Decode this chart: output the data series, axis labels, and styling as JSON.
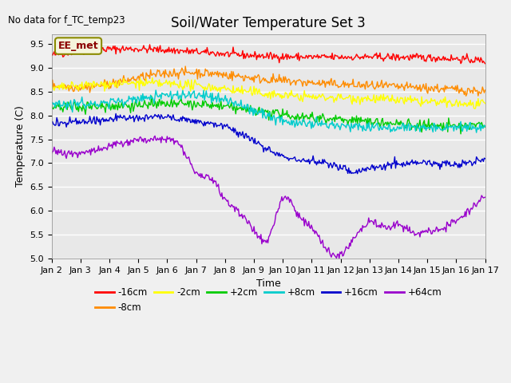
{
  "title": "Soil/Water Temperature Set 3",
  "xlabel": "Time",
  "ylabel": "Temperature (C)",
  "annotation": "No data for f_TC_temp23",
  "legend_label": "EE_met",
  "ylim": [
    5.0,
    9.7
  ],
  "xlim": [
    0,
    15
  ],
  "xtick_labels": [
    "Jan 2",
    "Jan 3",
    "Jan 4",
    "Jan 5",
    "Jan 6",
    "Jan 7",
    "Jan 8",
    "Jan 9",
    "Jan 10",
    "Jan 11",
    "Jan 12",
    "Jan 13",
    "Jan 14",
    "Jan 15",
    "Jan 16",
    "Jan 17"
  ],
  "ytick_vals": [
    5.0,
    5.5,
    6.0,
    6.5,
    7.0,
    7.5,
    8.0,
    8.5,
    9.0,
    9.5
  ],
  "series": [
    {
      "label": "-16cm",
      "color": "#ff0000",
      "keypoints": [
        [
          0,
          9.26
        ],
        [
          3.5,
          9.38
        ],
        [
          7,
          9.25
        ],
        [
          11,
          9.22
        ],
        [
          15,
          9.14
        ]
      ],
      "noise": 0.04
    },
    {
      "label": "-8cm",
      "color": "#ff8c00",
      "keypoints": [
        [
          0,
          8.65
        ],
        [
          2.5,
          8.72
        ],
        [
          4,
          8.88
        ],
        [
          7,
          8.78
        ],
        [
          11,
          8.62
        ],
        [
          15,
          8.5
        ]
      ],
      "noise": 0.05
    },
    {
      "label": "-2cm",
      "color": "#ffff00",
      "keypoints": [
        [
          0,
          8.55
        ],
        [
          3,
          8.67
        ],
        [
          5,
          8.62
        ],
        [
          8,
          8.42
        ],
        [
          11,
          8.35
        ],
        [
          13,
          8.28
        ],
        [
          15,
          8.22
        ]
      ],
      "noise": 0.05
    },
    {
      "label": "+2cm",
      "color": "#00cc00",
      "keypoints": [
        [
          0,
          8.18
        ],
        [
          3,
          8.22
        ],
        [
          6,
          8.18
        ],
        [
          7.5,
          8.05
        ],
        [
          10,
          7.92
        ],
        [
          12,
          7.82
        ],
        [
          15,
          7.8
        ]
      ],
      "noise": 0.055
    },
    {
      "label": "+8cm",
      "color": "#00cccc",
      "keypoints": [
        [
          0,
          8.28
        ],
        [
          3,
          8.35
        ],
        [
          6,
          8.32
        ],
        [
          7,
          8.1
        ],
        [
          8,
          7.9
        ],
        [
          10,
          7.78
        ],
        [
          12,
          7.75
        ],
        [
          15,
          7.75
        ]
      ],
      "noise": 0.055
    },
    {
      "label": "+16cm",
      "color": "#0000cc",
      "keypoints": [
        [
          0,
          7.83
        ],
        [
          2,
          7.92
        ],
        [
          4,
          7.95
        ],
        [
          5,
          7.88
        ],
        [
          6,
          7.75
        ],
        [
          7,
          7.45
        ],
        [
          8,
          7.15
        ],
        [
          9,
          7.05
        ],
        [
          10,
          6.9
        ],
        [
          10.5,
          6.82
        ],
        [
          11,
          6.9
        ],
        [
          12,
          6.98
        ],
        [
          13,
          7.0
        ],
        [
          14,
          6.98
        ],
        [
          15,
          7.1
        ]
      ],
      "noise": 0.04
    },
    {
      "label": "+64cm",
      "color": "#9900cc",
      "keypoints": [
        [
          0,
          7.28
        ],
        [
          1,
          7.22
        ],
        [
          2,
          7.35
        ],
        [
          3,
          7.48
        ],
        [
          4,
          7.5
        ],
        [
          4.5,
          7.35
        ],
        [
          5,
          6.82
        ],
        [
          5.5,
          6.68
        ],
        [
          6,
          6.25
        ],
        [
          6.5,
          5.95
        ],
        [
          7,
          5.6
        ],
        [
          7.5,
          5.42
        ],
        [
          8,
          6.25
        ],
        [
          8.5,
          5.95
        ],
        [
          9,
          5.65
        ],
        [
          9.5,
          5.2
        ],
        [
          10,
          5.08
        ],
        [
          10.5,
          5.45
        ],
        [
          11,
          5.78
        ],
        [
          11.5,
          5.65
        ],
        [
          12,
          5.7
        ],
        [
          12.5,
          5.55
        ],
        [
          13,
          5.55
        ],
        [
          14,
          5.8
        ],
        [
          14.5,
          6.05
        ],
        [
          15,
          6.3
        ]
      ],
      "noise": 0.04
    }
  ],
  "bg_color": "#f0f0f0",
  "plot_bg_color": "#e8e8e8",
  "grid_color": "#ffffff",
  "title_fontsize": 12,
  "axis_fontsize": 9,
  "tick_fontsize": 8,
  "ee_met_color": "#8B0000",
  "ee_met_bg": "#f5f5dc",
  "ee_met_edge": "#8B8B00"
}
